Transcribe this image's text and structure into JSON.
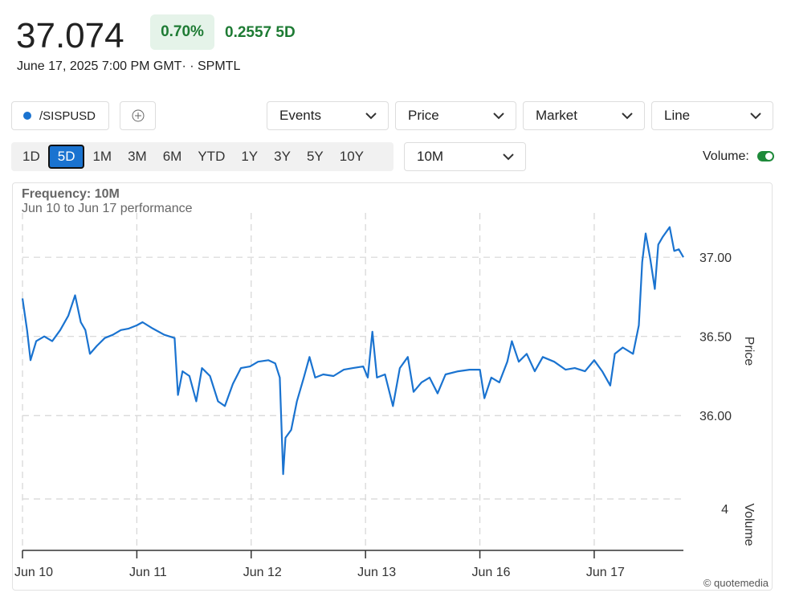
{
  "header": {
    "price": "37.074",
    "change_pct": "0.70%",
    "change": "0.2557 5D",
    "timestamp": "June 17, 2025 7:00 PM GMT· · SPMTL"
  },
  "controls": {
    "events": "Events",
    "price": "Price",
    "market": "Market",
    "line": "Line",
    "ranges": [
      "1D",
      "5D",
      "1M",
      "3M",
      "6M",
      "YTD",
      "1Y",
      "3Y",
      "5Y",
      "10Y"
    ],
    "selected_range": "5D",
    "frequency": "10M",
    "volume_label": "Volume:"
  },
  "chart_data": {
    "type": "line",
    "title": "Frequency: 10M",
    "subtitle": "Jun 10 to Jun 17 performance",
    "ylabel": "Price",
    "y2label": "Volume",
    "credit": "© quotemedia",
    "x": [
      0,
      0.04,
      0.07,
      0.12,
      0.19,
      0.26,
      0.33,
      0.4,
      0.46,
      0.51,
      0.55,
      0.59,
      0.65,
      0.72,
      0.79,
      0.86,
      0.93,
      1.0,
      1.05,
      1.14,
      1.24,
      1.33,
      1.36,
      1.4,
      1.46,
      1.52,
      1.57,
      1.64,
      1.71,
      1.77,
      1.84,
      1.91,
      1.99,
      2.06,
      2.15,
      2.21,
      2.25,
      2.28,
      2.3,
      2.35,
      2.4,
      2.46,
      2.51,
      2.56,
      2.63,
      2.72,
      2.81,
      2.89,
      2.98,
      3.02,
      3.06,
      3.1,
      3.17,
      3.24,
      3.3,
      3.37,
      3.42,
      3.49,
      3.56,
      3.63,
      3.7,
      3.81,
      3.91,
      4.0,
      4.04,
      4.1,
      4.17,
      4.24,
      4.28,
      4.34,
      4.41,
      4.48,
      4.55,
      4.65,
      4.75,
      4.83,
      4.92,
      5.0,
      5.07,
      5.14,
      5.18,
      5.25,
      5.34,
      5.39,
      5.42,
      5.45,
      5.49,
      5.53,
      5.56,
      5.6,
      5.66,
      5.7,
      5.74,
      5.78
    ],
    "series": [
      {
        "name": "/SISPUSD",
        "color": "#1a73d0",
        "values": [
          36.74,
          36.54,
          36.35,
          36.47,
          36.5,
          36.47,
          36.54,
          36.63,
          36.76,
          36.59,
          36.54,
          36.39,
          36.44,
          36.49,
          36.51,
          36.54,
          36.55,
          36.57,
          36.59,
          36.55,
          36.51,
          36.49,
          36.13,
          36.28,
          36.25,
          36.09,
          36.3,
          36.25,
          36.09,
          36.06,
          36.2,
          36.3,
          36.31,
          36.34,
          36.35,
          36.33,
          36.24,
          35.63,
          35.86,
          35.91,
          36.09,
          36.24,
          36.37,
          36.24,
          36.26,
          36.25,
          36.29,
          36.3,
          36.31,
          36.24,
          36.53,
          36.24,
          36.26,
          36.06,
          36.3,
          36.37,
          36.15,
          36.21,
          36.24,
          36.14,
          36.26,
          36.28,
          36.29,
          36.29,
          36.11,
          36.24,
          36.21,
          36.34,
          36.47,
          36.34,
          36.39,
          36.28,
          36.37,
          36.34,
          36.29,
          36.3,
          36.28,
          36.35,
          36.28,
          36.19,
          36.39,
          36.43,
          36.39,
          36.57,
          36.97,
          37.15,
          36.99,
          36.8,
          37.08,
          37.13,
          37.19,
          37.04,
          37.05,
          37.0
        ]
      }
    ],
    "xlim": [
      0,
      5.78
    ],
    "xticks": [
      {
        "value": 0,
        "label": "Jun 10"
      },
      {
        "value": 1,
        "label": "Jun 11"
      },
      {
        "value": 2,
        "label": "Jun 12"
      },
      {
        "value": 3,
        "label": "Jun 13"
      },
      {
        "value": 4,
        "label": "Jun 16"
      },
      {
        "value": 5,
        "label": "Jun 17"
      }
    ],
    "ylim": [
      35.58,
      37.28
    ],
    "yticks": [
      {
        "value": 36,
        "label": "36.00"
      },
      {
        "value": 36.5,
        "label": "36.50"
      },
      {
        "value": 37,
        "label": "37.00"
      }
    ],
    "y2lim": [
      0,
      5
    ],
    "y2ticks": [
      4
    ],
    "grid": true
  }
}
